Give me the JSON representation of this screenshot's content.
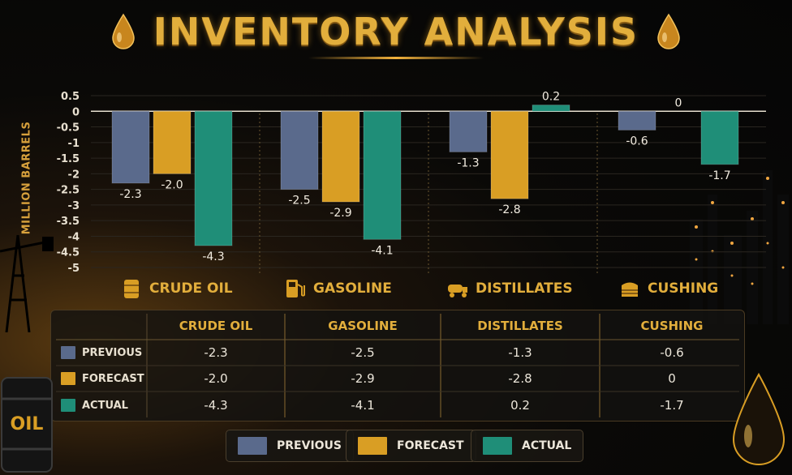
{
  "title": "INVENTORY ANALYSIS",
  "chart_data": {
    "type": "bar",
    "ylabel": "MILLION BARRELS",
    "ylim": [
      -5,
      0.5
    ],
    "yticks": [
      "0.5",
      "0",
      "-0.5",
      "-1",
      "-1.5",
      "-2",
      "-2.5",
      "-3",
      "-3.5",
      "-4",
      "-4.5",
      "-5"
    ],
    "categories": [
      "CRUDE OIL",
      "GASOLINE",
      "DISTILLATES",
      "CUSHING"
    ],
    "series": [
      {
        "name": "PREVIOUS",
        "color": "#5a6a8c",
        "values": [
          -2.3,
          -2.5,
          -1.3,
          -0.6
        ],
        "labels": [
          "-2.3",
          "-2.5",
          "-1.3",
          "-0.6"
        ]
      },
      {
        "name": "FORECAST",
        "color": "#d99e24",
        "values": [
          -2.0,
          -2.9,
          -2.8,
          0
        ],
        "labels": [
          "-2.0",
          "-2.9",
          "-2.8",
          "0"
        ]
      },
      {
        "name": "ACTUAL",
        "color": "#1f8e78",
        "values": [
          -4.3,
          -4.1,
          0.2,
          -1.7
        ],
        "labels": [
          "-4.3",
          "-4.1",
          "0.2",
          "-1.7"
        ]
      }
    ],
    "grid": true,
    "legend": "bottom-center"
  },
  "table": {
    "headers": [
      "CRUDE OIL",
      "GASOLINE",
      "DISTILLATES",
      "CUSHING"
    ],
    "rows": [
      {
        "label": "PREVIOUS",
        "color": "#5a6a8c",
        "cells": [
          "-2.3",
          "-2.5",
          "-1.3",
          "-0.6"
        ]
      },
      {
        "label": "FORECAST",
        "color": "#d99e24",
        "cells": [
          "-2.0",
          "-2.9",
          "-2.8",
          "0"
        ]
      },
      {
        "label": "ACTUAL",
        "color": "#1f8e78",
        "cells": [
          "-4.3",
          "-4.1",
          "0.2",
          "-1.7"
        ]
      }
    ]
  },
  "legend": {
    "items": [
      {
        "label": "PREVIOUS",
        "color": "#5a6a8c"
      },
      {
        "label": "FORECAST",
        "color": "#d99e24"
      },
      {
        "label": "ACTUAL",
        "color": "#1f8e78"
      }
    ]
  },
  "icons": [
    "oil-barrel-icon",
    "gas-pump-icon",
    "tanker-truck-icon",
    "storage-tank-icon",
    "oil-drop-icon"
  ],
  "barrel_text": "OIL"
}
